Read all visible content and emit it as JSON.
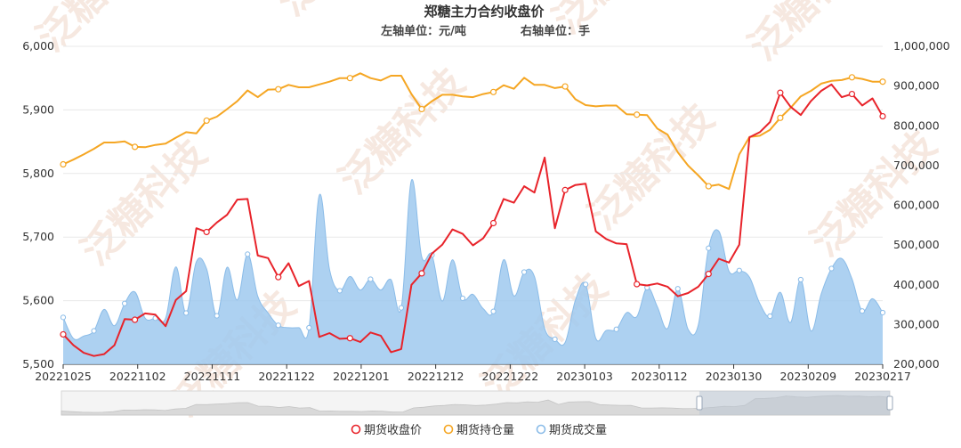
{
  "chart_data": {
    "type": "line",
    "title": "郑糖主力合约收盘价",
    "subtitle_left": "左轴单位：元/吨",
    "subtitle_right": "右轴单位：手",
    "watermark": "泛糖科技",
    "x_tick_labels": [
      "20221025",
      "20221102",
      "20221111",
      "20221122",
      "20221201",
      "20221212",
      "20221222",
      "20230103",
      "20230112",
      "20230130",
      "20230209",
      "20230217"
    ],
    "y_left": {
      "min": 5500,
      "max": 6000,
      "ticks": [
        5500,
        5600,
        5700,
        5800,
        5900,
        6000
      ],
      "tick_labels": [
        "5,500",
        "5,600",
        "5,700",
        "5,800",
        "5,900",
        "6,000"
      ]
    },
    "y_right": {
      "min": 200000,
      "max": 1000000,
      "ticks": [
        200000,
        300000,
        400000,
        500000,
        600000,
        700000,
        800000,
        900000,
        1000000
      ],
      "tick_labels": [
        "200,000",
        "300,000",
        "400,000",
        "500,000",
        "600,000",
        "700,000",
        "800,000",
        "900,000",
        "1,000,000"
      ]
    },
    "grid": true,
    "legend_position": "bottom",
    "data_zoom": "full range",
    "series": [
      {
        "name": "期货收盘价",
        "axis": "left",
        "style": "line",
        "color": "#e8232a",
        "values": [
          5547,
          5530,
          5518,
          5513,
          5516,
          5530,
          5571,
          5570,
          5580,
          5578,
          5560,
          5601,
          5615,
          5714,
          5708,
          5723,
          5735,
          5759,
          5760,
          5671,
          5667,
          5637,
          5659,
          5623,
          5631,
          5543,
          5549,
          5540,
          5541,
          5535,
          5550,
          5545,
          5519,
          5524,
          5625,
          5643,
          5674,
          5688,
          5712,
          5705,
          5687,
          5698,
          5722,
          5760,
          5754,
          5780,
          5770,
          5825,
          5714,
          5774,
          5782,
          5784,
          5709,
          5697,
          5690,
          5689,
          5626,
          5624,
          5627,
          5622,
          5607,
          5612,
          5622,
          5642,
          5666,
          5660,
          5688,
          5857,
          5865,
          5881,
          5927,
          5905,
          5892,
          5914,
          5930,
          5940,
          5920,
          5925,
          5907,
          5918,
          5890
        ]
      },
      {
        "name": "期货持仓量",
        "axis": "right",
        "style": "line",
        "color": "#f5a623",
        "values": [
          703000,
          715000,
          728000,
          742000,
          758000,
          758000,
          761000,
          747000,
          746000,
          752000,
          755000,
          770000,
          784000,
          781000,
          813000,
          823000,
          842000,
          862000,
          889000,
          872000,
          891000,
          892000,
          903000,
          897000,
          897000,
          904000,
          911000,
          920000,
          920000,
          932000,
          920000,
          914000,
          926000,
          926000,
          880000,
          842000,
          862000,
          878000,
          878000,
          874000,
          872000,
          880000,
          885000,
          902000,
          893000,
          921000,
          903000,
          903000,
          895000,
          899000,
          867000,
          852000,
          849000,
          851000,
          851000,
          829000,
          828000,
          827000,
          793000,
          778000,
          733000,
          700000,
          675000,
          648000,
          652000,
          641000,
          728000,
          772000,
          775000,
          790000,
          820000,
          845000,
          874000,
          888000,
          906000,
          913000,
          915000,
          922000,
          918000,
          911000,
          911000
        ]
      },
      {
        "name": "期货成交量",
        "axis": "right",
        "style": "area",
        "color": "#9fc9ef",
        "values": [
          318000,
          265000,
          271000,
          284000,
          338000,
          297000,
          353000,
          382000,
          316000,
          316000,
          316000,
          445000,
          329000,
          458000,
          440000,
          322000,
          444000,
          362000,
          477000,
          371000,
          329000,
          298000,
          292000,
          292000,
          292000,
          625000,
          439000,
          385000,
          421000,
          387000,
          414000,
          387000,
          413000,
          342000,
          663000,
          471000,
          475000,
          359000,
          463000,
          366000,
          376000,
          340000,
          333000,
          463000,
          372000,
          432000,
          421000,
          290000,
          263000,
          255000,
          361000,
          401000,
          265000,
          285000,
          288000,
          330000,
          320000,
          393000,
          345000,
          290000,
          390000,
          288000,
          299000,
          492000,
          535000,
          434000,
          436000,
          419000,
          353000,
          321000,
          381000,
          305000,
          413000,
          284000,
          377000,
          441000,
          466000,
          415000,
          334000,
          365000,
          330000
        ]
      }
    ]
  }
}
